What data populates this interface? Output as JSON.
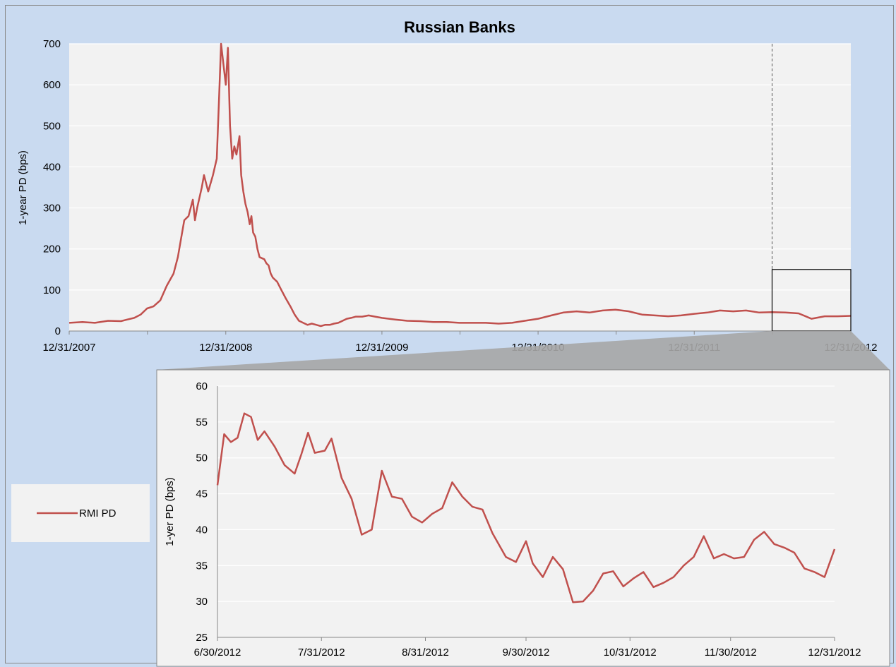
{
  "colors": {
    "figure_background": "#c9daf0",
    "plot_background": "#f2f2f2",
    "gridline": "#ffffff",
    "series": "#c0504d",
    "zoom_connector": "#a6a6a6"
  },
  "legend": {
    "placement": "left",
    "entries": [
      "RMI PD"
    ]
  },
  "chart_data": [
    {
      "type": "line",
      "title": "Russian Banks",
      "xlabel": "",
      "ylabel": "1-year PD (bps)",
      "ylim": [
        0,
        700
      ],
      "yticks": [
        "0",
        "100",
        "200",
        "300",
        "400",
        "500",
        "600",
        "700"
      ],
      "xlim": [
        "2007-12-31",
        "2012-12-31"
      ],
      "xticks": [
        "12/31/2007",
        "12/31/2008",
        "12/31/2009",
        "12/31/2010",
        "12/31/2011",
        "12/31/2012"
      ],
      "grid": "horizontal",
      "annotations": [
        "vertical dashed line at 6/30/2012",
        "zoom box 6/30/2012–12/31/2012, 0–150 bps"
      ],
      "series": [
        {
          "name": "RMI PD",
          "x": [
            "2007-12-31",
            "2008-01-31",
            "2008-02-29",
            "2008-03-31",
            "2008-04-30",
            "2008-05-15",
            "2008-05-31",
            "2008-06-15",
            "2008-06-30",
            "2008-07-15",
            "2008-07-31",
            "2008-08-15",
            "2008-08-31",
            "2008-09-10",
            "2008-09-15",
            "2008-09-25",
            "2008-10-05",
            "2008-10-15",
            "2008-10-20",
            "2008-10-25",
            "2008-11-05",
            "2008-11-10",
            "2008-11-20",
            "2008-12-01",
            "2008-12-10",
            "2008-12-15",
            "2008-12-20",
            "2008-12-31",
            "2009-01-05",
            "2009-01-10",
            "2009-01-15",
            "2009-01-20",
            "2009-01-25",
            "2009-02-01",
            "2009-02-05",
            "2009-02-10",
            "2009-02-15",
            "2009-02-20",
            "2009-02-25",
            "2009-03-01",
            "2009-03-05",
            "2009-03-10",
            "2009-03-15",
            "2009-03-20",
            "2009-03-31",
            "2009-04-05",
            "2009-04-10",
            "2009-04-15",
            "2009-04-20",
            "2009-04-30",
            "2009-05-10",
            "2009-05-20",
            "2009-05-31",
            "2009-06-10",
            "2009-06-20",
            "2009-06-30",
            "2009-07-10",
            "2009-07-20",
            "2009-07-31",
            "2009-08-10",
            "2009-08-20",
            "2009-08-31",
            "2009-09-10",
            "2009-09-20",
            "2009-09-30",
            "2009-10-10",
            "2009-10-20",
            "2009-10-31",
            "2009-11-15",
            "2009-11-30",
            "2009-12-15",
            "2009-12-31",
            "2010-01-31",
            "2010-02-28",
            "2010-03-31",
            "2010-04-30",
            "2010-05-31",
            "2010-06-30",
            "2010-07-31",
            "2010-08-31",
            "2010-09-30",
            "2010-10-31",
            "2010-11-30",
            "2010-12-31",
            "2011-01-31",
            "2011-02-28",
            "2011-03-31",
            "2011-04-30",
            "2011-05-31",
            "2011-06-30",
            "2011-07-31",
            "2011-08-31",
            "2011-09-30",
            "2011-10-31",
            "2011-11-30",
            "2011-12-31",
            "2012-01-31",
            "2012-02-29",
            "2012-03-31",
            "2012-04-30",
            "2012-05-31",
            "2012-06-30",
            "2012-07-31",
            "2012-08-31",
            "2012-09-30",
            "2012-10-31",
            "2012-11-30",
            "2012-12-31"
          ],
          "values": [
            20,
            22,
            20,
            25,
            24,
            28,
            32,
            40,
            55,
            60,
            75,
            110,
            140,
            180,
            210,
            270,
            280,
            320,
            270,
            300,
            350,
            380,
            340,
            380,
            420,
            560,
            700,
            600,
            690,
            500,
            420,
            450,
            430,
            475,
            380,
            340,
            310,
            290,
            260,
            280,
            240,
            230,
            200,
            180,
            175,
            165,
            160,
            140,
            130,
            120,
            100,
            80,
            60,
            40,
            25,
            20,
            15,
            18,
            15,
            12,
            15,
            15,
            18,
            20,
            25,
            30,
            32,
            35,
            35,
            38,
            35,
            32,
            28,
            25,
            24,
            22,
            22,
            20,
            20,
            20,
            18,
            20,
            25,
            30,
            38,
            45,
            48,
            45,
            50,
            52,
            48,
            40,
            38,
            36,
            38,
            42,
            45,
            50,
            48,
            50,
            45,
            46,
            45,
            43,
            30,
            36,
            36,
            37
          ]
        }
      ]
    },
    {
      "type": "line",
      "title": "",
      "xlabel": "",
      "ylabel": "1-yer PD (bps)",
      "ylim": [
        25,
        60
      ],
      "yticks": [
        "25",
        "30",
        "35",
        "40",
        "45",
        "50",
        "55",
        "60"
      ],
      "xlim": [
        "2012-06-30",
        "2012-12-31"
      ],
      "xticks": [
        "6/30/2012",
        "7/31/2012",
        "8/31/2012",
        "9/30/2012",
        "10/31/2012",
        "11/30/2012",
        "12/31/2012"
      ],
      "grid": "horizontal",
      "series": [
        {
          "name": "RMI PD",
          "x": [
            "2012-06-30",
            "2012-07-02",
            "2012-07-04",
            "2012-07-06",
            "2012-07-08",
            "2012-07-10",
            "2012-07-12",
            "2012-07-14",
            "2012-07-17",
            "2012-07-20",
            "2012-07-23",
            "2012-07-25",
            "2012-07-27",
            "2012-07-29",
            "2012-08-01",
            "2012-08-03",
            "2012-08-06",
            "2012-08-09",
            "2012-08-12",
            "2012-08-15",
            "2012-08-18",
            "2012-08-21",
            "2012-08-24",
            "2012-08-27",
            "2012-08-30",
            "2012-09-02",
            "2012-09-05",
            "2012-09-08",
            "2012-09-11",
            "2012-09-14",
            "2012-09-17",
            "2012-09-20",
            "2012-09-24",
            "2012-09-27",
            "2012-09-30",
            "2012-10-02",
            "2012-10-05",
            "2012-10-08",
            "2012-10-11",
            "2012-10-14",
            "2012-10-17",
            "2012-10-20",
            "2012-10-23",
            "2012-10-26",
            "2012-10-29",
            "2012-11-01",
            "2012-11-04",
            "2012-11-07",
            "2012-11-10",
            "2012-11-13",
            "2012-11-16",
            "2012-11-19",
            "2012-11-22",
            "2012-11-25",
            "2012-11-28",
            "2012-12-01",
            "2012-12-04",
            "2012-12-07",
            "2012-12-10",
            "2012-12-13",
            "2012-12-16",
            "2012-12-19",
            "2012-12-22",
            "2012-12-25",
            "2012-12-28",
            "2012-12-31"
          ],
          "values": [
            46.2,
            53.3,
            52.2,
            52.8,
            56.2,
            55.7,
            52.5,
            53.7,
            51.6,
            49.0,
            47.8,
            50.5,
            53.5,
            50.7,
            51.0,
            52.7,
            47.2,
            44.3,
            39.3,
            40.0,
            48.2,
            44.6,
            44.3,
            41.8,
            41.0,
            42.2,
            43.0,
            46.6,
            44.6,
            43.2,
            42.8,
            39.5,
            36.2,
            35.5,
            38.4,
            35.3,
            33.4,
            36.2,
            34.5,
            29.9,
            30.0,
            31.5,
            33.9,
            34.2,
            32.1,
            33.2,
            34.1,
            32.0,
            32.6,
            33.4,
            35.0,
            36.2,
            39.1,
            36.0,
            36.6,
            36.0,
            36.2,
            38.6,
            39.7,
            38.0,
            37.5,
            36.8,
            34.6,
            34.1,
            33.4,
            37.3
          ]
        }
      ]
    }
  ]
}
